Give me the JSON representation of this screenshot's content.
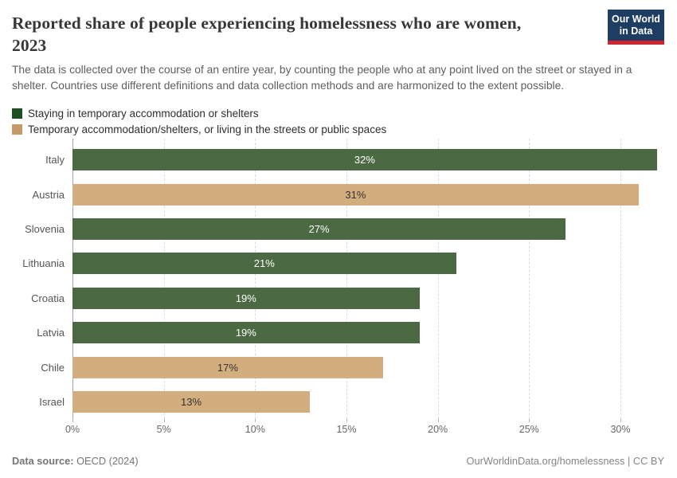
{
  "logo": {
    "line1": "Our World",
    "line2": "in Data",
    "bg_color": "#1d3d63",
    "stripe_color": "#ce2631"
  },
  "header": {
    "title": "Reported share of people experiencing homelessness who are women, 2023",
    "subtitle": "The data is collected over the course of an entire year, by counting the people who at any point lived on the street or stayed in a shelter. Countries use different definitions and data collection methods and are harmonized to the extent possible."
  },
  "chart_data": {
    "type": "bar",
    "orientation": "horizontal",
    "title": "Reported share of people experiencing homelessness who are women, 2023",
    "categories": [
      "Italy",
      "Austria",
      "Slovenia",
      "Lithuania",
      "Croatia",
      "Latvia",
      "Chile",
      "Israel"
    ],
    "values": [
      32,
      31,
      27,
      21,
      19,
      19,
      17,
      13
    ],
    "value_labels": [
      "32%",
      "31%",
      "27%",
      "21%",
      "19%",
      "19%",
      "17%",
      "13%"
    ],
    "series_by_country": [
      "shelters",
      "combined",
      "shelters",
      "shelters",
      "shelters",
      "shelters",
      "combined",
      "combined"
    ],
    "series": [
      {
        "id": "shelters",
        "name": "Staying in temporary accommodation or shelters",
        "swatch_color": "#1e4f23",
        "bar_color": "#4b6a43",
        "value_label_color": "#ffffff"
      },
      {
        "id": "combined",
        "name": "Temporary accommodation/shelters, or living in the streets or public spaces",
        "swatch_color": "#c49a66",
        "bar_color": "#d2ad7d",
        "value_label_color": "#333333"
      }
    ],
    "xlabel": "",
    "ylabel": "",
    "xlim": [
      0,
      32.4
    ],
    "xticks": [
      {
        "value": 0,
        "label": "0%"
      },
      {
        "value": 5,
        "label": "5%"
      },
      {
        "value": 10,
        "label": "10%"
      },
      {
        "value": 15,
        "label": "15%"
      },
      {
        "value": 20,
        "label": "20%"
      },
      {
        "value": 25,
        "label": "25%"
      },
      {
        "value": 30,
        "label": "30%"
      }
    ],
    "grid": "vertical-dashed",
    "legend_position": "top-left"
  },
  "footer": {
    "source_label": "Data source:",
    "source_value": "OECD (2024)",
    "credit": "OurWorldinData.org/homelessness | CC BY"
  }
}
